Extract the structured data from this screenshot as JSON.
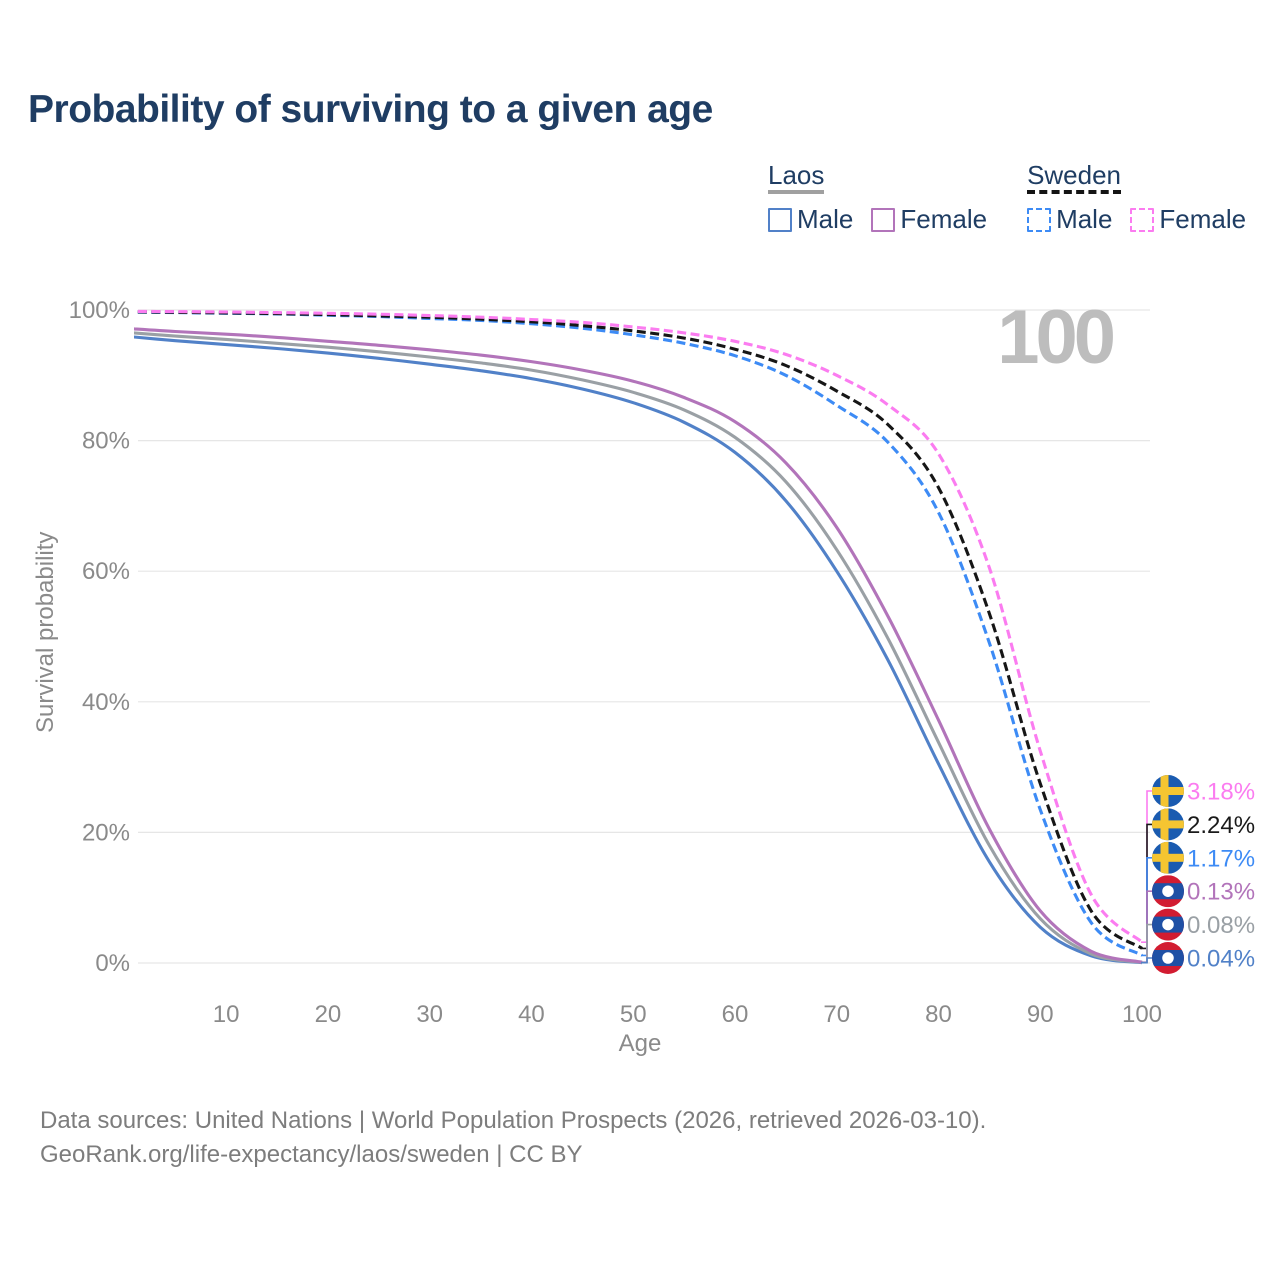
{
  "title": "Probability of surviving to a given age",
  "watermark_age_counter": "100",
  "legend": {
    "groups": [
      {
        "id": "laos",
        "name": "Laos",
        "line_style": "solid",
        "underline_color": "#a0a0a0",
        "items": [
          {
            "id": "male",
            "label": "Male",
            "color": "#5181c8"
          },
          {
            "id": "female",
            "label": "Female",
            "color": "#b274ba"
          }
        ]
      },
      {
        "id": "sweden",
        "name": "Sweden",
        "line_style": "dashed",
        "underline_color": "#141414",
        "items": [
          {
            "id": "male",
            "label": "Male",
            "color": "#3d8bf5"
          },
          {
            "id": "female",
            "label": "Female",
            "color": "#fb7cf0"
          }
        ]
      }
    ]
  },
  "chart_data": {
    "type": "line",
    "title": "Probability of surviving to a given age",
    "xlabel": "Age",
    "ylabel": "Survival probability",
    "xlim": [
      0,
      100
    ],
    "ylim": [
      0,
      100
    ],
    "grid": "horizontal-only",
    "legend_position": "top-right",
    "x_ticks": [
      10,
      20,
      30,
      40,
      50,
      60,
      70,
      80,
      90,
      100
    ],
    "y_ticks": [
      {
        "value": 0,
        "label": "0%"
      },
      {
        "value": 20,
        "label": "20%"
      },
      {
        "value": 40,
        "label": "40%"
      },
      {
        "value": 60,
        "label": "60%"
      },
      {
        "value": 80,
        "label": "80%"
      },
      {
        "value": 100,
        "label": "100%"
      }
    ],
    "ages": [
      0,
      5,
      10,
      15,
      20,
      25,
      30,
      35,
      40,
      45,
      50,
      55,
      60,
      65,
      70,
      75,
      80,
      85,
      90,
      95,
      100
    ],
    "series": [
      {
        "id": "laos-male",
        "name": "Laos Male",
        "country": "Laos",
        "sex": "Male",
        "dash": "solid",
        "color": "#5181c8",
        "values": [
          96.0,
          95.3,
          94.7,
          94.1,
          93.4,
          92.6,
          91.7,
          90.7,
          89.5,
          87.9,
          85.8,
          82.8,
          78.2,
          70.8,
          60.0,
          46.5,
          30.5,
          15.5,
          5.5,
          1.1,
          0.04
        ]
      },
      {
        "id": "laos-total",
        "name": "Laos Both sexes",
        "country": "Laos",
        "sex": "Both",
        "dash": "solid",
        "color": "#9aa0a5",
        "values": [
          96.6,
          96.0,
          95.5,
          94.9,
          94.3,
          93.6,
          92.8,
          91.9,
          90.8,
          89.3,
          87.4,
          84.7,
          80.5,
          73.7,
          63.3,
          49.8,
          33.8,
          18.0,
          6.8,
          1.4,
          0.08
        ]
      },
      {
        "id": "laos-female",
        "name": "Laos Female",
        "country": "Laos",
        "sex": "Female",
        "dash": "solid",
        "color": "#b274ba",
        "values": [
          97.2,
          96.7,
          96.3,
          95.8,
          95.2,
          94.6,
          93.9,
          93.1,
          92.1,
          90.8,
          89.1,
          86.6,
          82.9,
          76.6,
          66.7,
          53.2,
          37.2,
          20.5,
          8.0,
          1.8,
          0.13
        ]
      },
      {
        "id": "sweden-male",
        "name": "Sweden Male",
        "country": "Sweden",
        "sex": "Male",
        "dash": "dashed",
        "color": "#3d8bf5",
        "values": [
          99.7,
          99.6,
          99.5,
          99.4,
          99.2,
          99.0,
          98.7,
          98.4,
          97.9,
          97.2,
          96.2,
          94.9,
          93.0,
          90.0,
          85.4,
          79.8,
          69.0,
          49.0,
          23.5,
          6.2,
          1.17
        ]
      },
      {
        "id": "sweden-total",
        "name": "Sweden Both sexes",
        "country": "Sweden",
        "sex": "Both",
        "dash": "dashed",
        "color": "#161616",
        "values": [
          99.75,
          99.65,
          99.55,
          99.45,
          99.3,
          99.1,
          98.9,
          98.6,
          98.2,
          97.6,
          96.8,
          95.7,
          94.0,
          91.5,
          87.6,
          82.5,
          72.8,
          53.5,
          27.5,
          8.0,
          2.24
        ]
      },
      {
        "id": "sweden-female",
        "name": "Sweden Female",
        "country": "Sweden",
        "sex": "Female",
        "dash": "dashed",
        "color": "#fb7cf0",
        "values": [
          99.8,
          99.75,
          99.7,
          99.6,
          99.5,
          99.35,
          99.15,
          98.9,
          98.55,
          98.1,
          97.4,
          96.5,
          95.2,
          93.2,
          90.0,
          85.5,
          78.0,
          60.5,
          32.5,
          10.5,
          3.18
        ]
      }
    ],
    "end_labels": [
      {
        "id": "sweden-female",
        "text": "3.18%",
        "value": 3.18,
        "color": "#fb7cf0",
        "flag": "sweden"
      },
      {
        "id": "sweden-total",
        "text": "2.24%",
        "value": 2.24,
        "color": "#1a1a1a",
        "flag": "sweden"
      },
      {
        "id": "sweden-male",
        "text": "1.17%",
        "value": 1.17,
        "color": "#3d8bf5",
        "flag": "sweden"
      },
      {
        "id": "laos-female",
        "text": "0.13%",
        "value": 0.13,
        "color": "#b274ba",
        "flag": "laos"
      },
      {
        "id": "laos-total",
        "text": "0.08%",
        "value": 0.08,
        "color": "#9aa0a5",
        "flag": "laos"
      },
      {
        "id": "laos-male",
        "text": "0.04%",
        "value": 0.04,
        "color": "#5181c8",
        "flag": "laos"
      }
    ],
    "flag_colors": {
      "sweden": {
        "field": "#1a5bb0",
        "cross": "#f5c531"
      },
      "laos": {
        "red": "#d21c31",
        "blue": "#1f50a5",
        "disc": "#ffffff"
      }
    }
  },
  "footer": {
    "line1": "Data sources: United Nations | World Population Prospects (2026, retrieved 2026-03-10).",
    "line2": "GeoRank.org/life-expectancy/laos/sweden | CC BY"
  }
}
